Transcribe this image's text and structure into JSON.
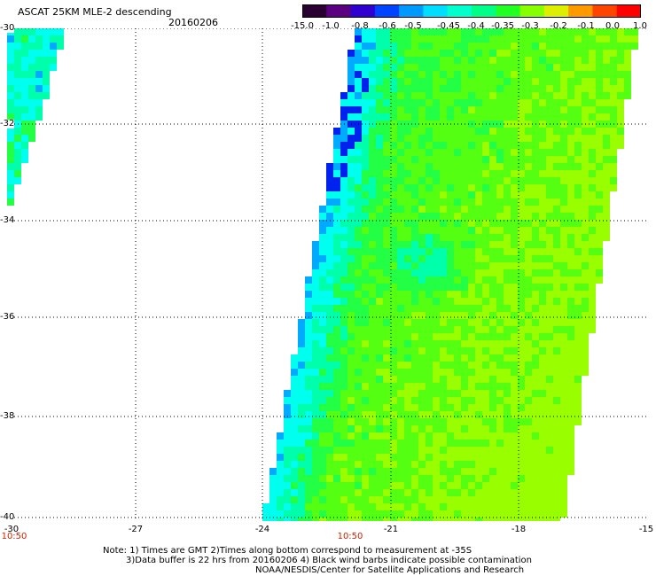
{
  "header": {
    "title": "ASCAT 25KM MLE-2 descending",
    "date": "20160206"
  },
  "colorbar": {
    "labels": [
      "-15.0",
      "-1.0",
      "-0.8",
      "-0.6",
      "-0.5",
      "-0.45",
      "-0.4",
      "-0.35",
      "-0.3",
      "-0.2",
      "-0.1",
      "0.0",
      "1.0"
    ],
    "colors": [
      "#2a0033",
      "#5a0080",
      "#3000d0",
      "#0044ff",
      "#0099ff",
      "#00ddff",
      "#00ffcc",
      "#00ff88",
      "#22ff22",
      "#88ff00",
      "#ddee00",
      "#ff9900",
      "#ff4400",
      "#ff0000"
    ]
  },
  "axes": {
    "y_labels": [
      "-30",
      "-32",
      "-34",
      "-36",
      "-38",
      "-40"
    ],
    "x_labels": [
      "-27",
      "-24",
      "-21",
      "-18",
      "-15"
    ],
    "corner_label": "-30"
  },
  "times": [
    "10:50",
    "10:50"
  ],
  "notes": {
    "line1": "Note: 1) Times are GMT 2)Times along bottom correspond to measurement at -35S",
    "line2": "3)Data buffer is 22 hrs from 20160206 4) Black wind barbs indicate possible contamination",
    "line3": "NOAA/NESDIS/Center for Satellite Applications and Research"
  }
}
